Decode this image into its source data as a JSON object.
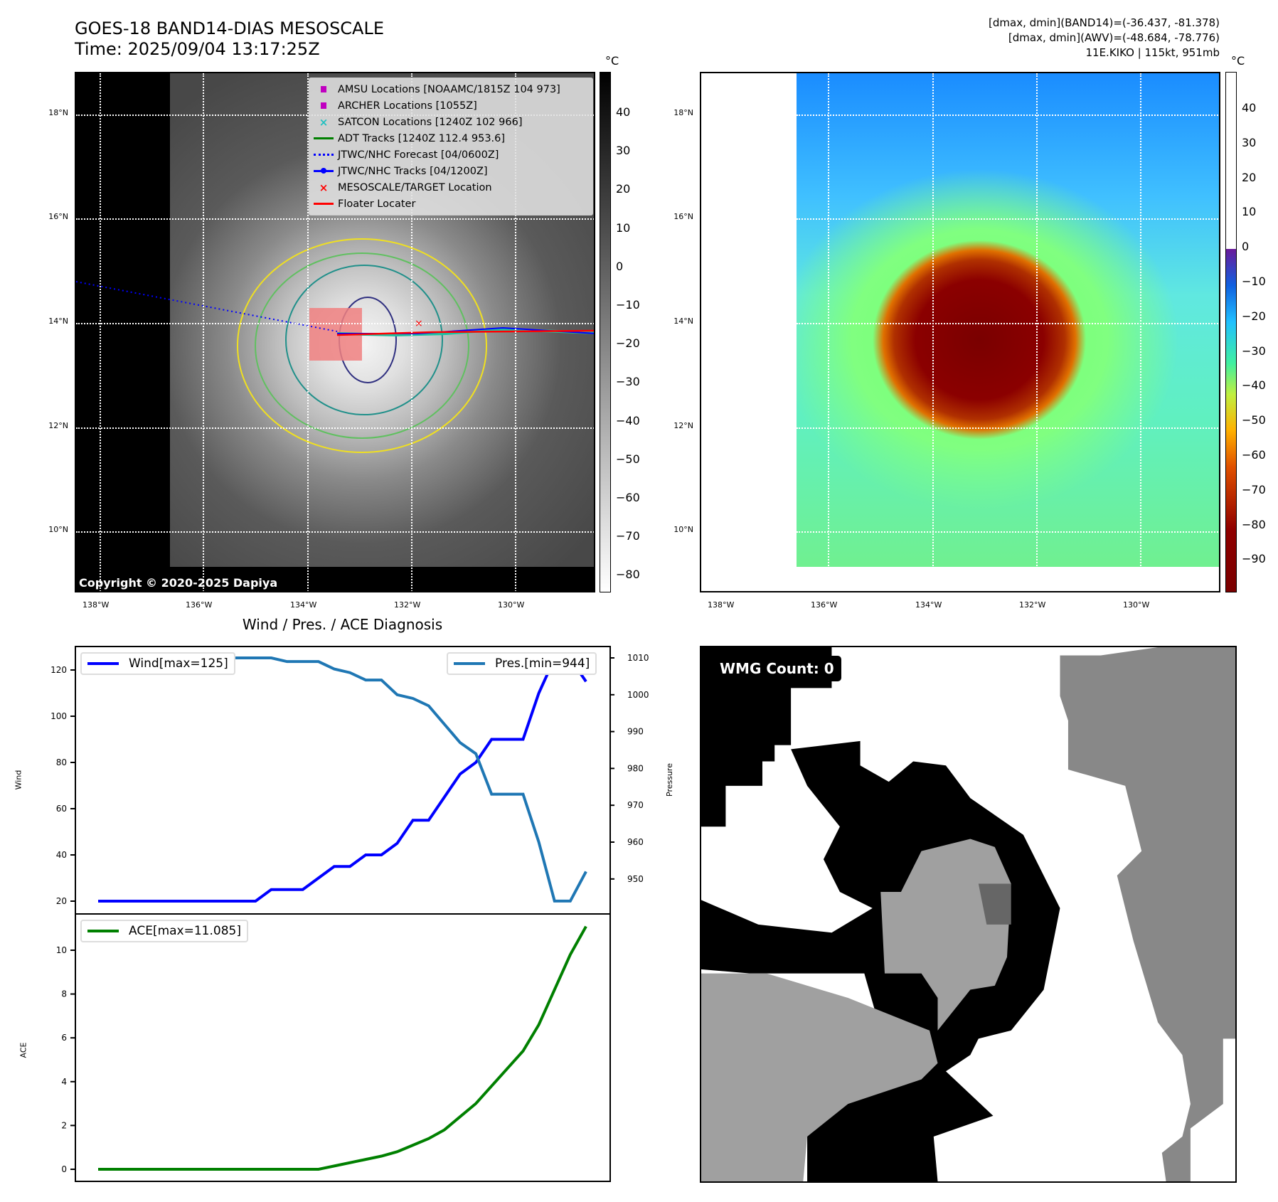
{
  "header": {
    "title_line1": "GOES-18 BAND14-DIAS MESOSCALE",
    "title_line2": "Time: 2025/09/04 13:17:25Z",
    "info_line1": "[dmax, dmin](BAND14)=(-36.437, -81.378)",
    "info_line2": "[dmax, dmin](AWV)=(-48.684, -78.776)",
    "info_line3": "11E.KIKO | 115kt, 951mb"
  },
  "map": {
    "lon_labels": [
      "138°W",
      "136°W",
      "134°W",
      "132°W",
      "130°W"
    ],
    "lat_labels": [
      "18°N",
      "16°N",
      "14°N",
      "12°N",
      "10°N"
    ],
    "unit": "°C",
    "copyright": "Copyright © 2020-2025 Dapiya",
    "left_colorbar_ticks": [
      "40",
      "30",
      "20",
      "10",
      "0",
      "−10",
      "−20",
      "−30",
      "−40",
      "−50",
      "−60",
      "−70",
      "−80"
    ],
    "right_colorbar_ticks": [
      "40",
      "30",
      "20",
      "10",
      "0",
      "−10",
      "−20",
      "−30",
      "−40",
      "−50",
      "−60",
      "−70",
      "−80",
      "−90"
    ],
    "legend": [
      {
        "label": "AMSU Locations [NOAAMC/1815Z 104 973]",
        "color": "#c000c0",
        "symbol": "square"
      },
      {
        "label": "ARCHER Locations [1055Z]",
        "color": "#c000c0",
        "symbol": "square"
      },
      {
        "label": "SATCON Locations [1240Z 102 966]",
        "color": "#20c0c0",
        "symbol": "x"
      },
      {
        "label": "ADT Tracks [1240Z 112.4 953.6]",
        "color": "#008000",
        "symbol": "line"
      },
      {
        "label": "JTWC/NHC Forecast [04/0600Z]",
        "color": "#0000ff",
        "symbol": "dotted"
      },
      {
        "label": "JTWC/NHC Tracks [04/1200Z]",
        "color": "#0000ff",
        "symbol": "line-dot"
      },
      {
        "label": "MESOSCALE/TARGET Location",
        "color": "#ff0000",
        "symbol": "x"
      },
      {
        "label": "Floater Locater",
        "color": "#ff0000",
        "symbol": "line"
      }
    ]
  },
  "wmg": {
    "label": "WMG Count: 0"
  },
  "chart_data": [
    {
      "type": "line",
      "title": "Wind / Pres. / ACE Diagnosis",
      "ylabel": "Wind",
      "y2label": "Pressure",
      "ylim": [
        17,
        130
      ],
      "y2lim": [
        941,
        1012
      ],
      "yticks": [
        20,
        40,
        60,
        80,
        100,
        120
      ],
      "y2ticks": [
        950,
        960,
        970,
        980,
        990,
        1000,
        1010
      ],
      "series": [
        {
          "name": "Wind",
          "legend": "Wind[max=125]",
          "color": "#0000ff",
          "values": [
            20,
            20,
            20,
            20,
            20,
            20,
            20,
            20,
            20,
            20,
            20,
            25,
            25,
            25,
            30,
            35,
            35,
            40,
            40,
            45,
            55,
            55,
            65,
            75,
            80,
            90,
            90,
            90,
            110,
            125,
            125,
            115
          ]
        },
        {
          "name": "Pres",
          "legend": "Pres.[min=944]",
          "color": "#1f77b4",
          "axis": "right",
          "values": [
            1010,
            1010,
            1010,
            1010,
            1010,
            1010,
            1010,
            1010,
            1010,
            1010,
            1010,
            1010,
            1009,
            1009,
            1009,
            1007,
            1006,
            1004,
            1004,
            1000,
            999,
            997,
            992,
            987,
            984,
            973,
            973,
            973,
            960,
            944,
            944,
            952
          ]
        }
      ]
    },
    {
      "type": "line",
      "ylabel": "ACE",
      "ylim": [
        -0.6,
        11.6
      ],
      "yticks": [
        0,
        2,
        4,
        6,
        8,
        10
      ],
      "series": [
        {
          "name": "ACE",
          "legend": "ACE[max=11.085]",
          "color": "#008000",
          "values": [
            0,
            0,
            0,
            0,
            0,
            0,
            0,
            0,
            0,
            0,
            0,
            0,
            0,
            0,
            0,
            0.15,
            0.3,
            0.45,
            0.6,
            0.8,
            1.1,
            1.4,
            1.8,
            2.4,
            3.0,
            3.8,
            4.6,
            5.4,
            6.6,
            8.2,
            9.8,
            11.085
          ]
        }
      ]
    }
  ]
}
